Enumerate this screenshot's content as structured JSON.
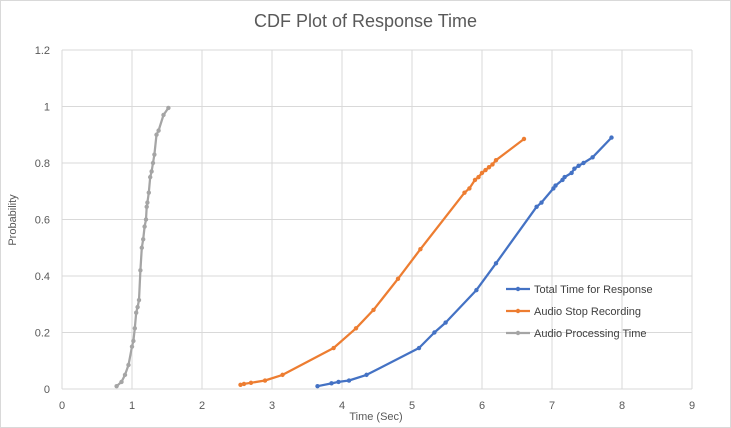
{
  "chart_data": {
    "type": "line",
    "title": "CDF Plot of Response Time",
    "xlabel": "Time (Sec)",
    "ylabel": "Probability",
    "xlim": [
      0,
      9
    ],
    "ylim": [
      0,
      1.2
    ],
    "x_ticks": [
      "0",
      "1",
      "2",
      "3",
      "4",
      "5",
      "6",
      "7",
      "8",
      "9"
    ],
    "y_ticks": [
      "0",
      "0.2",
      "0.4",
      "0.6",
      "0.8",
      "1",
      "1.2"
    ],
    "grid": true,
    "legend_position": "right",
    "series": [
      {
        "name": "Total Time for Response",
        "color": "#4472c4",
        "x": [
          3.65,
          3.85,
          3.95,
          4.1,
          4.35,
          5.1,
          5.32,
          5.48,
          5.92,
          6.2,
          6.78,
          6.85,
          7.02,
          7.05,
          7.15,
          7.18,
          7.28,
          7.32,
          7.38,
          7.45,
          7.58,
          7.85
        ],
        "y": [
          0.01,
          0.02,
          0.025,
          0.03,
          0.05,
          0.145,
          0.2,
          0.235,
          0.35,
          0.445,
          0.645,
          0.66,
          0.71,
          0.72,
          0.74,
          0.75,
          0.765,
          0.78,
          0.79,
          0.8,
          0.82,
          0.89
        ]
      },
      {
        "name": "Audio Stop Recording",
        "color": "#ed7d31",
        "x": [
          2.55,
          2.6,
          2.7,
          2.9,
          3.15,
          3.88,
          4.2,
          4.45,
          4.8,
          5.12,
          5.75,
          5.82,
          5.9,
          5.95,
          6.0,
          6.05,
          6.1,
          6.15,
          6.2,
          6.6
        ],
        "y": [
          0.015,
          0.018,
          0.022,
          0.03,
          0.05,
          0.145,
          0.215,
          0.28,
          0.39,
          0.495,
          0.695,
          0.71,
          0.74,
          0.75,
          0.765,
          0.775,
          0.785,
          0.795,
          0.81,
          0.885
        ]
      },
      {
        "name": "Audio Processing Time",
        "color": "#a5a5a5",
        "x": [
          0.78,
          0.85,
          0.9,
          0.95,
          1.0,
          1.02,
          1.04,
          1.06,
          1.08,
          1.1,
          1.12,
          1.14,
          1.16,
          1.18,
          1.2,
          1.21,
          1.22,
          1.24,
          1.26,
          1.28,
          1.3,
          1.32,
          1.35,
          1.38,
          1.45,
          1.52
        ],
        "y": [
          0.01,
          0.025,
          0.05,
          0.085,
          0.15,
          0.17,
          0.215,
          0.27,
          0.29,
          0.315,
          0.42,
          0.5,
          0.53,
          0.575,
          0.6,
          0.645,
          0.66,
          0.695,
          0.75,
          0.77,
          0.8,
          0.83,
          0.9,
          0.915,
          0.97,
          0.995
        ]
      }
    ]
  }
}
